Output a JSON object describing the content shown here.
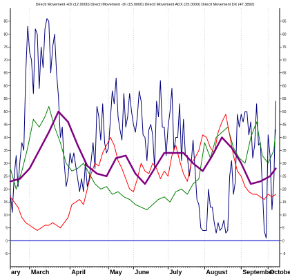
{
  "chart_data": {
    "type": "line",
    "title": "Directl Movement +DI (12.0000) Directl Movement -DI (15.0000) Directl Movement ADX (25.0000) Directl Movement DX (47.3892)",
    "xlabel": "",
    "ylabel": "",
    "ylim": [
      -10,
      90
    ],
    "yticks": [
      -5,
      0,
      5,
      10,
      15,
      20,
      25,
      30,
      35,
      40,
      45,
      50,
      55,
      60,
      65,
      70,
      75,
      80,
      85
    ],
    "xlim": [
      0,
      140
    ],
    "x_ticks": [
      {
        "x": 0,
        "label": "ary"
      },
      {
        "x": 10,
        "label": "March"
      },
      {
        "x": 31,
        "label": "April"
      },
      {
        "x": 51,
        "label": "May"
      },
      {
        "x": 64,
        "label": "June"
      },
      {
        "x": 82,
        "label": "July"
      },
      {
        "x": 101,
        "label": "August"
      },
      {
        "x": 120,
        "label": "September"
      },
      {
        "x": 134,
        "label": "October"
      }
    ],
    "reference_line": {
      "y": 0,
      "color": "#3b3bd8"
    },
    "grid": true,
    "grid_style": "vertical dotted",
    "series": [
      {
        "color": "#00007a",
        "width": 1.0,
        "x": [
          0,
          1,
          2,
          3,
          4,
          5,
          6,
          7,
          8,
          9,
          10,
          11,
          12,
          13,
          14,
          15,
          16,
          17,
          18,
          19,
          20,
          21,
          22,
          23,
          24,
          25,
          26,
          27,
          28,
          29,
          30,
          31,
          32,
          33,
          34,
          35,
          36,
          37,
          38,
          39,
          40,
          41,
          42,
          43,
          44,
          45,
          46,
          47,
          48,
          49,
          50,
          51,
          52,
          53,
          54,
          55,
          56,
          57,
          58,
          59,
          60,
          61,
          62,
          63,
          64,
          65,
          66,
          67,
          68,
          69,
          70,
          71,
          72,
          73,
          74,
          75,
          76,
          77,
          78,
          79,
          80,
          81,
          82,
          83,
          84,
          85,
          86,
          87,
          88,
          89,
          90,
          91,
          92,
          93,
          94,
          95,
          96,
          97,
          98,
          99,
          100,
          101,
          102,
          103,
          104,
          105,
          106,
          107,
          108,
          109,
          110,
          111,
          112,
          113,
          114,
          115,
          116,
          117,
          118,
          119,
          120,
          121,
          122,
          123,
          124,
          125,
          126,
          127,
          128,
          129,
          130,
          131,
          132,
          133,
          134,
          135,
          136,
          137,
          138
        ],
        "y": [
          18,
          11,
          25,
          33,
          21,
          31,
          38,
          35,
          65,
          83,
          73,
          70,
          57,
          82,
          80,
          59,
          75,
          67,
          82,
          86,
          85,
          65,
          75,
          80,
          65,
          56,
          40,
          44,
          30,
          21,
          25,
          34,
          30,
          34,
          29,
          24,
          19,
          24,
          19,
          30,
          21,
          24,
          31,
          38,
          28,
          52,
          48,
          39,
          53,
          38,
          34,
          36,
          47,
          58,
          53,
          63,
          48,
          43,
          39,
          57,
          44,
          48,
          57,
          50,
          45,
          42,
          48,
          58,
          54,
          41,
          40,
          31,
          43,
          45,
          41,
          28,
          54,
          48,
          62,
          44,
          44,
          33,
          44,
          50,
          59,
          35,
          40,
          40,
          53,
          31,
          47,
          33,
          33,
          25,
          30,
          39,
          28,
          16,
          14,
          5,
          4,
          4,
          4,
          20,
          13,
          13,
          7,
          3,
          7,
          4,
          5,
          8,
          3,
          4,
          25,
          31,
          18,
          23,
          49,
          44,
          49,
          46,
          50,
          50,
          41,
          46,
          32,
          37,
          53,
          37,
          38,
          21,
          4,
          1,
          41,
          33,
          12,
          23,
          54
        ]
      },
      {
        "color": "#008000",
        "width": 1.0,
        "x": [
          0,
          3,
          6,
          9,
          12,
          15,
          18,
          20,
          23,
          26,
          29,
          32,
          35,
          38,
          41,
          44,
          47,
          50,
          53,
          56,
          59,
          62,
          65,
          68,
          71,
          74,
          77,
          80,
          83,
          86,
          89,
          92,
          95,
          98,
          101,
          104,
          107,
          110,
          113,
          116,
          119,
          122,
          125,
          128,
          131,
          134,
          137,
          138
        ],
        "y": [
          28,
          20,
          27,
          36,
          47,
          44,
          48,
          52,
          44,
          38,
          30,
          27,
          28,
          30,
          26,
          22,
          20,
          21,
          18,
          19,
          17,
          16,
          14,
          13,
          12,
          14,
          16,
          17,
          15,
          19,
          20,
          18,
          22,
          24,
          38,
          32,
          40,
          42,
          44,
          36,
          32,
          30,
          40,
          46,
          33,
          30,
          35,
          43
        ]
      },
      {
        "color": "#ff0000",
        "width": 1.0,
        "x": [
          0,
          2,
          4,
          6,
          8,
          10,
          12,
          14,
          16,
          18,
          20,
          22,
          24,
          26,
          28,
          30,
          32,
          34,
          36,
          38,
          40,
          42,
          44,
          46,
          48,
          50,
          52,
          54,
          56,
          58,
          60,
          62,
          64,
          66,
          68,
          70,
          72,
          74,
          76,
          78,
          80,
          82,
          84,
          86,
          88,
          90,
          92,
          94,
          96,
          98,
          100,
          102,
          104,
          106,
          108,
          110,
          112,
          114,
          116,
          118,
          120,
          122,
          124,
          126,
          128,
          130,
          132,
          134,
          136,
          138
        ],
        "y": [
          17,
          15,
          13,
          9,
          7,
          6,
          5,
          4,
          5,
          6,
          6,
          7,
          6,
          5,
          7,
          9,
          14,
          15,
          16,
          14,
          20,
          26,
          30,
          29,
          34,
          37,
          40,
          37,
          31,
          28,
          24,
          20,
          19,
          24,
          30,
          27,
          26,
          30,
          28,
          24,
          27,
          25,
          33,
          37,
          31,
          26,
          23,
          30,
          32,
          35,
          41,
          40,
          36,
          34,
          42,
          46,
          49,
          41,
          33,
          27,
          25,
          21,
          19,
          18,
          18,
          17,
          16,
          18,
          17,
          18
        ]
      },
      {
        "color": "#800080",
        "width": 2.5,
        "x": [
          0,
          5,
          10,
          15,
          20,
          25,
          30,
          35,
          40,
          45,
          50,
          55,
          60,
          65,
          70,
          75,
          80,
          85,
          90,
          95,
          100,
          105,
          110,
          115,
          120,
          125,
          130,
          135,
          138
        ],
        "y": [
          23,
          24,
          28,
          35,
          42,
          50,
          46,
          37,
          29,
          26,
          25,
          32,
          33,
          26,
          22,
          28,
          34,
          34,
          34,
          30,
          27,
          33,
          40,
          36,
          30,
          22,
          23,
          25,
          28
        ]
      }
    ]
  }
}
